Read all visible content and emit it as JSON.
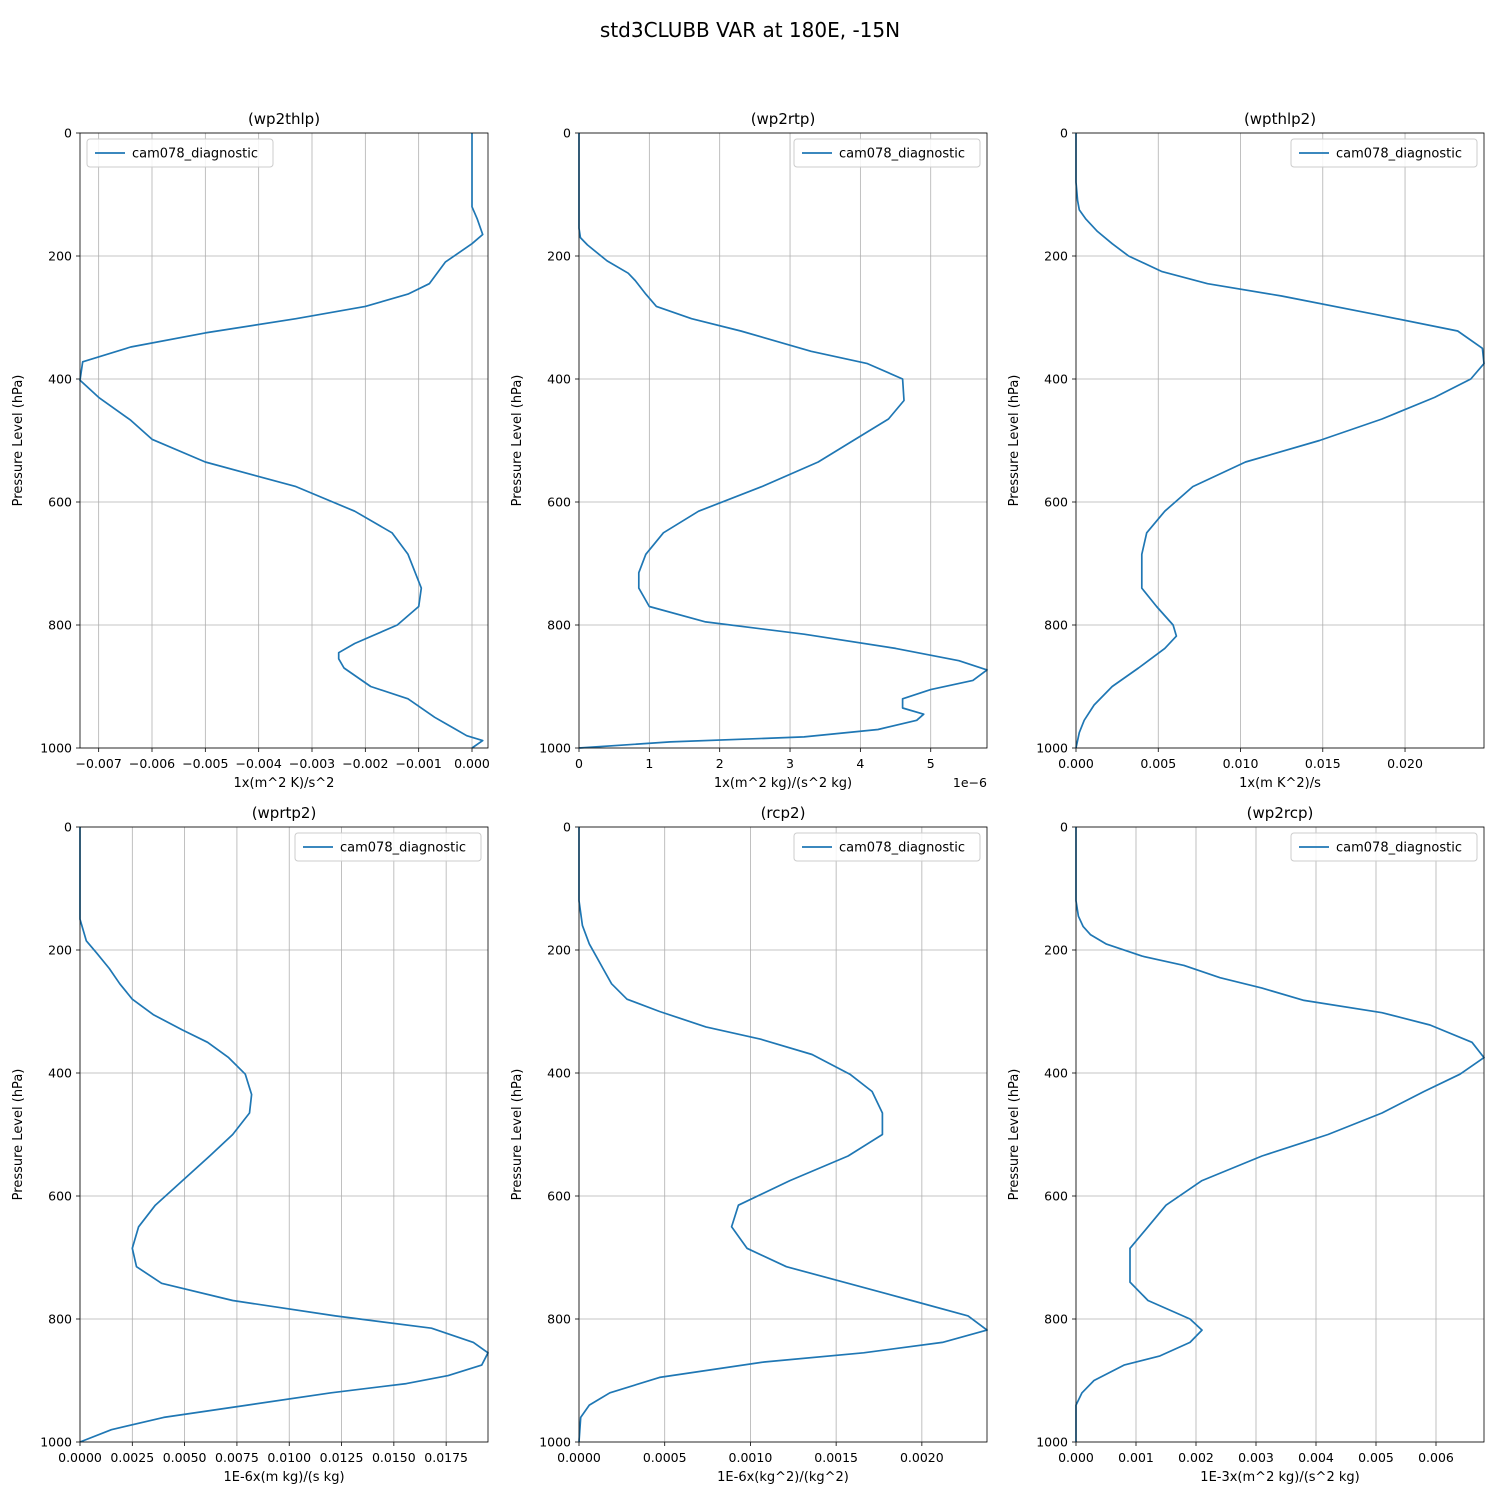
{
  "figure": {
    "title": "std3CLUBB VAR at 180E, -15N"
  },
  "chart_data": [
    {
      "type": "line",
      "title": "(wp2thlp)",
      "xlabel": "1x(m^2 K)/s^2",
      "ylabel": "Pressure Level (hPa)",
      "xlim": [
        -0.00735,
        0.0003
      ],
      "ylim": [
        1000,
        0
      ],
      "xticks": [
        -0.007,
        -0.006,
        -0.005,
        -0.004,
        -0.003,
        -0.002,
        -0.001,
        0.0
      ],
      "xtick_labels": [
        "−0.007",
        "−0.006",
        "−0.005",
        "−0.004",
        "−0.003",
        "−0.002",
        "−0.001",
        "0.000"
      ],
      "yticks": [
        0,
        200,
        400,
        600,
        800,
        1000
      ],
      "grid": true,
      "legend": "upper left",
      "series": [
        {
          "name": "cam078_diagnostic",
          "color": "#1f77b4",
          "x": [
            0.0,
            0.0,
            0.0,
            0.0,
            0.0001,
            0.0002,
            0.0,
            -0.0005,
            -0.0008,
            -0.0012,
            -0.002,
            -0.0033,
            -0.005,
            -0.0064,
            -0.0073,
            -0.00735,
            -0.007,
            -0.0064,
            -0.006,
            -0.005,
            -0.0033,
            -0.0022,
            -0.0015,
            -0.0012,
            -0.00095,
            -0.001,
            -0.0014,
            -0.0022,
            -0.0025,
            -0.0025,
            -0.0024,
            -0.0019,
            -0.0012,
            -0.0007,
            -0.0005,
            -0.0003,
            -0.0001,
            0.0002,
            0.0
          ],
          "y": [
            0,
            50,
            100,
            120,
            140,
            165,
            180,
            210,
            245,
            262,
            282,
            302,
            325,
            348,
            372,
            402,
            430,
            467,
            498,
            535,
            575,
            615,
            650,
            685,
            740,
            770,
            800,
            830,
            845,
            855,
            870,
            900,
            920,
            950,
            960,
            970,
            980,
            988,
            1000
          ]
        }
      ]
    },
    {
      "type": "line",
      "title": "(wp2rtp)",
      "xlabel": "1x(m^2 kg)/(s^2 kg)",
      "ylabel": "Pressure Level (hPa)",
      "offset_text": "1e−6",
      "xlim": [
        0,
        5.8
      ],
      "ylim": [
        1000,
        0
      ],
      "xticks": [
        0,
        1,
        2,
        3,
        4,
        5
      ],
      "xtick_labels": [
        "0",
        "1",
        "2",
        "3",
        "4",
        "5"
      ],
      "yticks": [
        0,
        200,
        400,
        600,
        800,
        1000
      ],
      "grid": true,
      "legend": "upper right",
      "series": [
        {
          "name": "cam078_diagnostic",
          "color": "#1f77b4",
          "x": [
            0.0,
            0.0,
            0.0,
            0.02,
            0.12,
            0.4,
            0.7,
            0.8,
            0.95,
            1.1,
            1.6,
            2.3,
            3.3,
            4.1,
            4.6,
            4.62,
            4.4,
            3.9,
            3.4,
            2.6,
            1.7,
            1.2,
            0.95,
            0.85,
            0.85,
            1.0,
            1.8,
            3.2,
            4.5,
            5.4,
            5.8,
            5.6,
            5.0,
            4.6,
            4.6,
            4.9,
            4.8,
            4.25,
            3.2,
            1.3,
            0.0
          ],
          "y": [
            0,
            100,
            155,
            170,
            182,
            208,
            228,
            240,
            262,
            282,
            302,
            322,
            355,
            375,
            400,
            435,
            465,
            500,
            535,
            575,
            615,
            650,
            685,
            715,
            740,
            770,
            795,
            815,
            838,
            858,
            873,
            890,
            905,
            920,
            935,
            945,
            955,
            970,
            982,
            990,
            1000
          ]
        }
      ]
    },
    {
      "type": "line",
      "title": "(wpthlp2)",
      "xlabel": "1x(m K^2)/s",
      "ylabel": "Pressure Level (hPa)",
      "xlim": [
        0,
        0.0248
      ],
      "ylim": [
        1000,
        0
      ],
      "xticks": [
        0.0,
        0.005,
        0.01,
        0.015,
        0.02
      ],
      "xtick_labels": [
        "0.000",
        "0.005",
        "0.010",
        "0.015",
        "0.020"
      ],
      "yticks": [
        0,
        200,
        400,
        600,
        800,
        1000
      ],
      "grid": true,
      "legend": "upper right",
      "series": [
        {
          "name": "cam078_diagnostic",
          "color": "#1f77b4",
          "x": [
            0.0,
            0.0,
            0.0001,
            0.0002,
            0.0006,
            0.0013,
            0.0022,
            0.0032,
            0.0052,
            0.008,
            0.0125,
            0.0182,
            0.0232,
            0.0247,
            0.0248,
            0.024,
            0.0218,
            0.0186,
            0.0148,
            0.0103,
            0.0071,
            0.0054,
            0.0043,
            0.004,
            0.004,
            0.0049,
            0.0059,
            0.0061,
            0.0054,
            0.0038,
            0.0022,
            0.0011,
            0.0005,
            0.0002,
            0.0
          ],
          "y": [
            0,
            80,
            110,
            125,
            140,
            160,
            180,
            200,
            225,
            245,
            265,
            295,
            322,
            350,
            375,
            400,
            430,
            465,
            500,
            535,
            575,
            615,
            650,
            685,
            740,
            770,
            800,
            818,
            838,
            870,
            900,
            930,
            955,
            975,
            1000
          ]
        }
      ]
    },
    {
      "type": "line",
      "title": "(wprtp2)",
      "xlabel": "1E-6x(m kg)/(s kg)",
      "ylabel": "Pressure Level (hPa)",
      "xlim": [
        0,
        0.0195
      ],
      "ylim": [
        1000,
        0
      ],
      "xticks": [
        0.0,
        0.0025,
        0.005,
        0.0075,
        0.01,
        0.0125,
        0.015,
        0.0175
      ],
      "xtick_labels": [
        "0.0000",
        "0.0025",
        "0.0050",
        "0.0075",
        "0.0100",
        "0.0125",
        "0.0150",
        "0.0175"
      ],
      "yticks": [
        0,
        200,
        400,
        600,
        800,
        1000
      ],
      "grid": true,
      "legend": "upper right",
      "series": [
        {
          "name": "cam078_diagnostic",
          "color": "#1f77b4",
          "x": [
            0.0,
            0.0,
            0.0003,
            0.0008,
            0.0014,
            0.0019,
            0.0025,
            0.0035,
            0.0049,
            0.0061,
            0.0071,
            0.0079,
            0.0082,
            0.0081,
            0.0073,
            0.0062,
            0.0049,
            0.0036,
            0.0028,
            0.0025,
            0.0027,
            0.0039,
            0.0073,
            0.0122,
            0.0168,
            0.0188,
            0.0195,
            0.0192,
            0.0176,
            0.0156,
            0.012,
            0.008,
            0.004,
            0.0015,
            0.0
          ],
          "y": [
            0,
            150,
            185,
            205,
            230,
            255,
            280,
            305,
            330,
            350,
            375,
            402,
            435,
            465,
            500,
            535,
            575,
            615,
            650,
            685,
            715,
            742,
            770,
            795,
            815,
            838,
            855,
            875,
            892,
            905,
            920,
            940,
            960,
            980,
            1000
          ]
        }
      ]
    },
    {
      "type": "line",
      "title": "(rcp2)",
      "xlabel": "1E-6x(kg^2)/(kg^2)",
      "ylabel": "Pressure Level (hPa)",
      "xlim": [
        0,
        0.00238
      ],
      "ylim": [
        1000,
        0
      ],
      "xticks": [
        0.0,
        0.0005,
        0.001,
        0.0015,
        0.002
      ],
      "xtick_labels": [
        "0.0000",
        "0.0005",
        "0.0010",
        "0.0015",
        "0.0020"
      ],
      "yticks": [
        0,
        200,
        400,
        600,
        800,
        1000
      ],
      "grid": true,
      "legend": "upper right",
      "series": [
        {
          "name": "cam078_diagnostic",
          "color": "#1f77b4",
          "x": [
            0.0,
            0.0,
            2e-05,
            6e-05,
            0.0001,
            0.00014,
            0.00019,
            0.00028,
            0.00047,
            0.00074,
            0.00106,
            0.00136,
            0.00158,
            0.00171,
            0.00177,
            0.00177,
            0.00157,
            0.00123,
            0.00093,
            0.00089,
            0.00098,
            0.00121,
            0.00157,
            0.00194,
            0.00227,
            0.00238,
            0.00212,
            0.00166,
            0.00108,
            0.00047,
            0.00018,
            6e-05,
            1e-05,
            0.0
          ],
          "y": [
            0,
            120,
            160,
            190,
            210,
            230,
            255,
            280,
            300,
            325,
            345,
            370,
            402,
            430,
            465,
            500,
            535,
            575,
            615,
            650,
            685,
            715,
            742,
            770,
            795,
            818,
            838,
            855,
            870,
            895,
            920,
            940,
            960,
            1000
          ]
        }
      ]
    },
    {
      "type": "line",
      "title": "(wp2rcp)",
      "xlabel": "1E-3x(m^2 kg)/(s^2 kg)",
      "ylabel": "Pressure Level (hPa)",
      "xlim": [
        0,
        0.0068
      ],
      "ylim": [
        1000,
        0
      ],
      "xticks": [
        0.0,
        0.001,
        0.002,
        0.003,
        0.004,
        0.005,
        0.006
      ],
      "xtick_labels": [
        "0.000",
        "0.001",
        "0.002",
        "0.003",
        "0.004",
        "0.005",
        "0.006"
      ],
      "yticks": [
        0,
        200,
        400,
        600,
        800,
        1000
      ],
      "grid": true,
      "legend": "upper right",
      "series": [
        {
          "name": "cam078_diagnostic",
          "color": "#1f77b4",
          "x": [
            0.0,
            0.0,
            4e-05,
            0.00012,
            0.00024,
            0.0005,
            0.0011,
            0.0018,
            0.0024,
            0.0031,
            0.0038,
            0.0051,
            0.0059,
            0.0066,
            0.0068,
            0.0064,
            0.0058,
            0.0051,
            0.0042,
            0.0031,
            0.0021,
            0.0015,
            0.0012,
            0.0009,
            0.0009,
            0.0012,
            0.0019,
            0.0021,
            0.0019,
            0.0014,
            0.0008,
            0.0003,
            0.0001,
            0.0,
            0.0
          ],
          "y": [
            0,
            120,
            145,
            162,
            175,
            190,
            210,
            225,
            245,
            262,
            282,
            302,
            322,
            350,
            375,
            402,
            430,
            465,
            500,
            535,
            575,
            615,
            650,
            685,
            740,
            770,
            800,
            818,
            838,
            860,
            875,
            900,
            920,
            940,
            1000
          ]
        }
      ]
    }
  ]
}
